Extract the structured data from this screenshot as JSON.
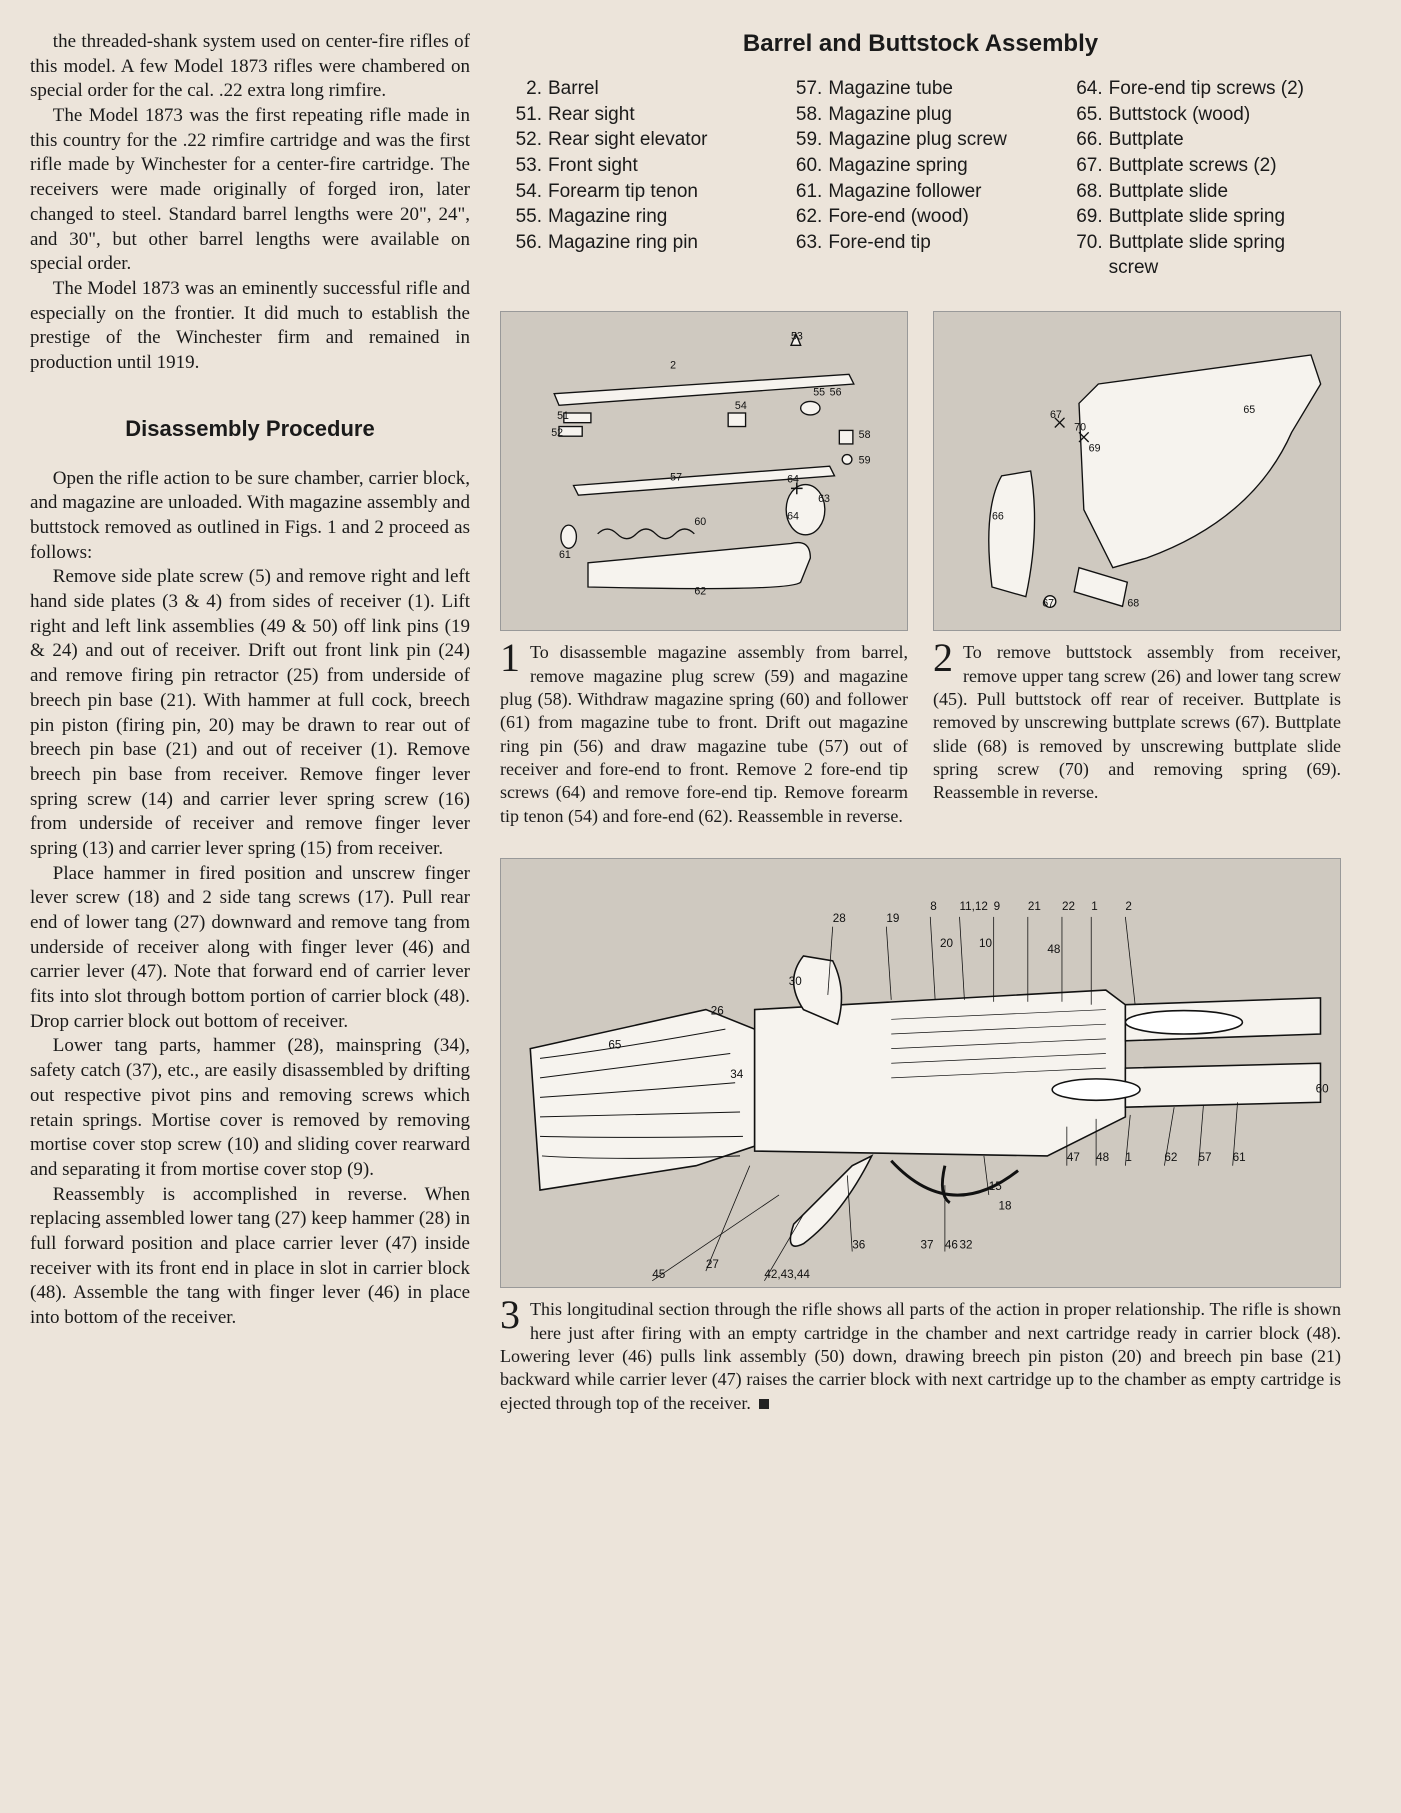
{
  "leftcol": {
    "p1": "the threaded-shank system used on center-fire rifles of this model. A few Model 1873 rifles were chambered on special order for the cal. .22 extra long rimfire.",
    "p2": "The Model 1873 was the first repeating rifle made in this country for the .22 rimfire cartridge and was the first rifle made by Winchester for a center-fire cartridge. The receivers were made originally of forged iron, later changed to steel. Standard barrel lengths were 20\", 24\", and 30\", but other barrel lengths were available on special order.",
    "p3": "The Model 1873 was an eminently successful rifle and especially on the frontier. It did much to establish the prestige of the Winchester firm and remained in production until 1919.",
    "heading": "Disassembly Procedure",
    "p4": "Open the rifle action to be sure chamber, carrier block, and magazine are unloaded. With magazine assembly and buttstock removed as outlined in Figs. 1 and 2 proceed as follows:",
    "p5": "Remove side plate screw (5) and remove right and left hand side plates (3 & 4) from sides of receiver (1). Lift right and left link assemblies (49 & 50) off link pins (19 & 24) and out of receiver. Drift out front link pin (24) and remove firing pin retractor (25) from underside of breech pin base (21). With hammer at full cock, breech pin piston (firing pin, 20) may be drawn to rear out of breech pin base (21) and out of receiver (1). Remove breech pin base from receiver. Remove finger lever spring screw (14) and carrier lever spring screw (16) from underside of receiver and remove finger lever spring (13) and carrier lever spring (15) from receiver.",
    "p6": "Place hammer in fired position and unscrew finger lever screw (18) and 2 side tang screws (17). Pull rear end of lower tang (27) downward and remove tang from underside of receiver along with finger lever (46) and carrier lever (47). Note that forward end of carrier lever fits into slot through bottom portion of carrier block (48). Drop carrier block out bottom of receiver.",
    "p7": "Lower tang parts, hammer (28), mainspring (34), safety catch (37), etc., are easily disassembled by drifting out respective pivot pins and removing screws which retain springs. Mortise cover is removed by removing mortise cover stop screw (10) and sliding cover rearward and separating it from mortise cover stop (9).",
    "p8": "Reassembly is accomplished in reverse. When replacing assembled lower tang (27) keep hammer (28) in full forward position and place carrier lever (47) inside receiver with its front end in place in slot in carrier block (48). Assemble the tang with finger lever (46) in place into bottom of the receiver."
  },
  "rightcol": {
    "heading": "Barrel and Buttstock Assembly"
  },
  "parts_col1": [
    {
      "n": "2.",
      "l": "Barrel"
    },
    {
      "n": "51.",
      "l": "Rear sight"
    },
    {
      "n": "52.",
      "l": "Rear sight elevator"
    },
    {
      "n": "53.",
      "l": "Front sight"
    },
    {
      "n": "54.",
      "l": "Forearm tip tenon"
    },
    {
      "n": "55.",
      "l": "Magazine ring"
    },
    {
      "n": "56.",
      "l": "Magazine ring pin"
    }
  ],
  "parts_col2": [
    {
      "n": "57.",
      "l": "Magazine tube"
    },
    {
      "n": "58.",
      "l": "Magazine plug"
    },
    {
      "n": "59.",
      "l": "Magazine plug screw"
    },
    {
      "n": "60.",
      "l": "Magazine spring"
    },
    {
      "n": "61.",
      "l": "Magazine follower"
    },
    {
      "n": "62.",
      "l": "Fore-end (wood)"
    },
    {
      "n": "63.",
      "l": "Fore-end tip"
    }
  ],
  "parts_col3": [
    {
      "n": "64.",
      "l": "Fore-end tip screws (2)"
    },
    {
      "n": "65.",
      "l": "Buttstock (wood)"
    },
    {
      "n": "66.",
      "l": "Buttplate"
    },
    {
      "n": "67.",
      "l": "Buttplate screws (2)"
    },
    {
      "n": "68.",
      "l": "Buttplate slide"
    },
    {
      "n": "69.",
      "l": "Buttplate slide spring"
    },
    {
      "n": "70.",
      "l": "Buttplate slide spring screw"
    }
  ],
  "fig1": {
    "num": "1",
    "text": "To disassemble magazine assembly from barrel, remove magazine plug screw (59) and magazine plug (58). Withdraw magazine spring (60) and follower (61) from magazine tube to front. Drift out magazine ring pin (56) and draw magazine tube (57) out of receiver and fore-end to front. Remove 2 fore-end tip screws (64) and remove fore-end tip. Remove forearm tip tenon (54) and fore-end (62). Reassemble in reverse.",
    "callouts": [
      "53",
      "2",
      "55",
      "56",
      "51",
      "54",
      "58",
      "52",
      "57",
      "59",
      "64",
      "63",
      "64",
      "60",
      "61",
      "62"
    ]
  },
  "fig2": {
    "num": "2",
    "text": "To remove buttstock assembly from receiver, remove upper tang screw (26) and lower tang screw (45). Pull buttstock off rear of receiver. Buttplate is removed by unscrewing buttplate screws (67). Buttplate slide (68) is removed by unscrewing buttplate slide spring screw (70) and removing spring (69). Reassemble in reverse.",
    "callouts": [
      "67",
      "70",
      "69",
      "65",
      "66",
      "67",
      "68"
    ]
  },
  "fig3": {
    "num": "3",
    "text": "This longitudinal section through the rifle shows all parts of the action in proper relationship. The rifle is shown here just after firing with an empty cartridge in the chamber and next cartridge ready in carrier block (48). Lowering lever (46) pulls link assembly (50) down, drawing breech pin piston (20) and breech pin base (21) backward while carrier lever (47) raises the carrier block with next cartridge up to the chamber as empty cartridge is ejected through top of the receiver.",
    "callouts": [
      "28",
      "19",
      "8",
      "11,12",
      "9",
      "21",
      "22",
      "1",
      "2",
      "20",
      "10",
      "48",
      "30",
      "34",
      "65",
      "26",
      "60",
      "15",
      "47",
      "48",
      "1",
      "62",
      "57",
      "61",
      "18",
      "36",
      "46",
      "27",
      "37",
      "32",
      "45",
      "42,43,44"
    ]
  },
  "colors": {
    "page_bg": "#ece4da",
    "diagram_bg": "#cfc9c0",
    "text": "#1a1a1a"
  }
}
